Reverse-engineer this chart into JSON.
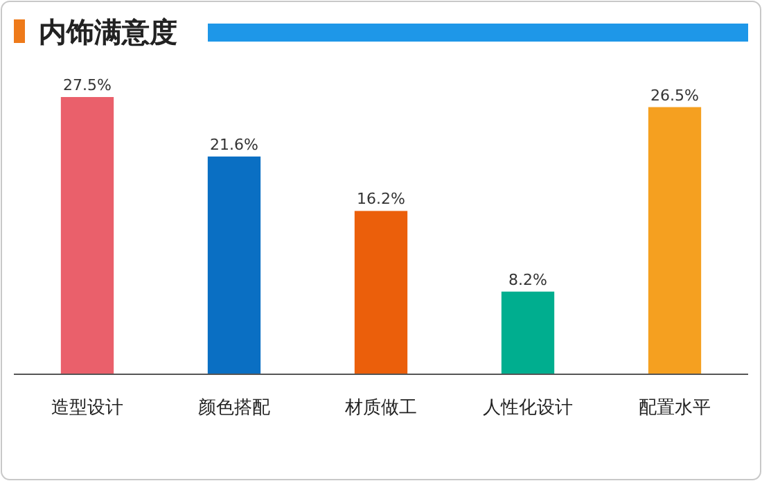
{
  "chart_data": {
    "type": "bar",
    "title": "内饰满意度",
    "categories": [
      "造型设计",
      "颜色搭配",
      "材质做工",
      "人性化设计",
      "配置水平"
    ],
    "values": [
      27.5,
      21.6,
      16.2,
      8.2,
      26.5
    ],
    "colors": [
      "#ea606b",
      "#0a6fc3",
      "#eb5f0b",
      "#00ae8f",
      "#f5a020"
    ],
    "value_labels": [
      "27.5%",
      "21.6%",
      "16.2%",
      "8.2%",
      "26.5%"
    ],
    "grid": false
  }
}
